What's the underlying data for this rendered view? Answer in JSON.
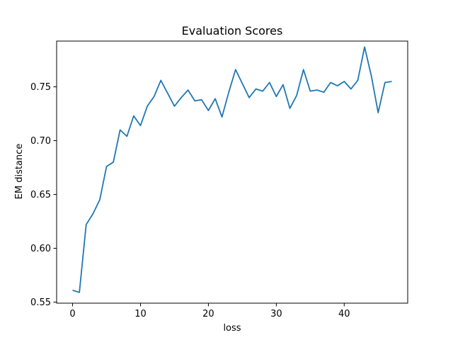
{
  "chart_data": {
    "type": "line",
    "title": "Evaluation Scores",
    "xlabel": "loss",
    "ylabel": "EM distance",
    "xlim": [
      -2.35,
      49.35
    ],
    "ylim": [
      0.549,
      0.7925
    ],
    "x_ticks": [
      0,
      10,
      20,
      30,
      40
    ],
    "x_tick_labels": [
      "0",
      "10",
      "20",
      "30",
      "40"
    ],
    "y_ticks": [
      0.55,
      0.6,
      0.65,
      0.7,
      0.75
    ],
    "y_tick_labels": [
      "0.55",
      "0.60",
      "0.65",
      "0.70",
      "0.75"
    ],
    "grid": false,
    "legend": "none",
    "series": [
      {
        "color": "#1f77b4",
        "x": [
          0,
          1,
          2,
          3,
          4,
          5,
          6,
          7,
          8,
          9,
          10,
          11,
          12,
          13,
          14,
          15,
          16,
          17,
          18,
          19,
          20,
          21,
          22,
          23,
          24,
          25,
          26,
          27,
          28,
          29,
          30,
          31,
          32,
          33,
          34,
          35,
          36,
          37,
          38,
          39,
          40,
          41,
          42,
          43,
          44,
          45,
          46,
          47
        ],
        "values": [
          0.561,
          0.559,
          0.622,
          0.632,
          0.645,
          0.676,
          0.68,
          0.71,
          0.704,
          0.723,
          0.714,
          0.732,
          0.741,
          0.756,
          0.744,
          0.732,
          0.74,
          0.747,
          0.737,
          0.738,
          0.728,
          0.739,
          0.722,
          0.745,
          0.766,
          0.753,
          0.74,
          0.748,
          0.746,
          0.754,
          0.741,
          0.752,
          0.73,
          0.742,
          0.766,
          0.746,
          0.747,
          0.745,
          0.754,
          0.751,
          0.755,
          0.748,
          0.756,
          0.787,
          0.76,
          0.726,
          0.754,
          0.755
        ]
      }
    ]
  }
}
